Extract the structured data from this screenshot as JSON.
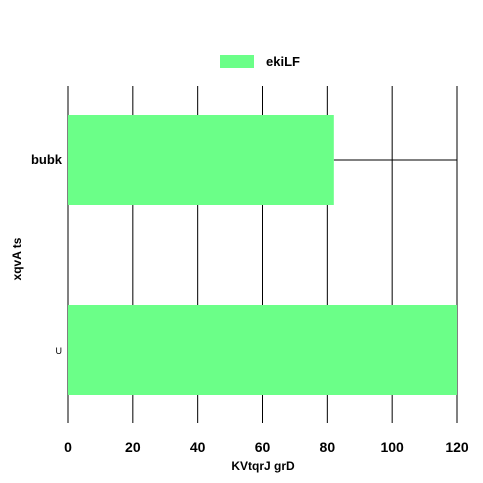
{
  "chart_data": {
    "type": "bar",
    "orientation": "horizontal",
    "categories": [
      "bubk",
      "U"
    ],
    "series": [
      {
        "name": "ekiLF",
        "values": [
          82,
          120
        ],
        "color": "#6bff88"
      }
    ],
    "xlabel": "KVtqrJ  grD",
    "ylabel": "xqvA ts",
    "xlim": [
      0,
      120
    ],
    "xticks": [
      0,
      20,
      40,
      60,
      80,
      100,
      120
    ],
    "grid": "vertical",
    "legend_position": "top-center"
  }
}
